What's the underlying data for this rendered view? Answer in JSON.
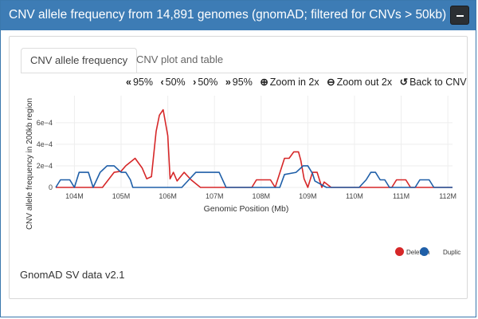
{
  "panel": {
    "title": "CNV allele frequency from 14,891 genomes (gnomAD; filtered for CNVs > 50kb)",
    "collapse_label": "−"
  },
  "tabs": [
    {
      "label": "CNV allele frequency",
      "active": true
    },
    {
      "label": "CNV plot and table",
      "active": false
    }
  ],
  "toolbar": [
    {
      "icon": "double-chevron-left-icon",
      "glyph": "«",
      "label": "95%"
    },
    {
      "icon": "chevron-left-icon",
      "glyph": "‹",
      "label": "50%"
    },
    {
      "icon": "chevron-right-icon",
      "glyph": "›",
      "label": "50%"
    },
    {
      "icon": "double-chevron-right-icon",
      "glyph": "»",
      "label": "95%"
    },
    {
      "icon": "zoom-in-icon",
      "glyph": "⊕",
      "label": "Zoom in 2x"
    },
    {
      "icon": "zoom-out-icon",
      "glyph": "⊖",
      "label": "Zoom out 2x"
    },
    {
      "icon": "undo-icon",
      "glyph": "↺",
      "label": "Back to CNV"
    }
  ],
  "footer": {
    "source": "GnomAD SV data v2.1"
  },
  "colors": {
    "deletion": "#d62728",
    "duplication": "#1f5fa8",
    "header": "#3d7cb5"
  },
  "chart_data": {
    "type": "line",
    "title": "",
    "xlabel": "Genomic Position (Mb)",
    "ylabel": "CNV allele frequency in 200kb region",
    "xlim": [
      103.6,
      112.1
    ],
    "ylim": [
      0,
      0.00085
    ],
    "x_ticks": [
      "104M",
      "105M",
      "106M",
      "107M",
      "108M",
      "109M",
      "110M",
      "111M",
      "112M"
    ],
    "x_tick_values": [
      104,
      105,
      106,
      107,
      108,
      109,
      110,
      111,
      112
    ],
    "y_ticks": [
      "0",
      "2e−4",
      "4e−4",
      "6e−4"
    ],
    "y_tick_values": [
      0,
      0.0002,
      0.0004,
      0.0006
    ],
    "series": [
      {
        "name": "Deletion",
        "color": "#d62728",
        "x": [
          103.6,
          104.6,
          104.85,
          105.0,
          105.1,
          105.3,
          105.45,
          105.55,
          105.65,
          105.75,
          105.82,
          105.9,
          106.0,
          106.05,
          106.12,
          106.2,
          106.35,
          106.5,
          106.7,
          107.8,
          107.9,
          108.2,
          108.3,
          108.5,
          108.6,
          108.7,
          108.8,
          108.85,
          108.92,
          109.0,
          109.1,
          109.2,
          109.3,
          109.35,
          109.5,
          110.8,
          110.9,
          111.1,
          111.2,
          112.1
        ],
        "y": [
          0,
          0,
          0.00014,
          0.00015,
          0.0002,
          0.00027,
          0.00018,
          8e-05,
          0.0001,
          0.00052,
          0.00067,
          0.00072,
          0.00048,
          8e-05,
          0.00014,
          6e-05,
          0.00014,
          7e-05,
          0,
          0,
          7e-05,
          7e-05,
          0,
          0.00027,
          0.00027,
          0.00033,
          0.00033,
          0.00025,
          8e-05,
          0,
          0.00014,
          0.00014,
          0,
          5e-05,
          0,
          0,
          7e-05,
          7e-05,
          0,
          0
        ]
      },
      {
        "name": "Duplication",
        "color": "#1f5fa8",
        "x": [
          103.6,
          103.7,
          103.9,
          104.0,
          104.1,
          104.3,
          104.4,
          104.55,
          104.7,
          104.85,
          105.0,
          105.1,
          105.2,
          105.25,
          105.3,
          106.3,
          106.45,
          106.6,
          107.1,
          107.25,
          108.4,
          108.5,
          108.75,
          108.9,
          109.0,
          109.1,
          109.15,
          109.4,
          110.1,
          110.25,
          110.35,
          110.45,
          110.55,
          110.65,
          110.75,
          110.8,
          111.3,
          111.4,
          111.6,
          111.7,
          112.1
        ],
        "y": [
          0,
          7e-05,
          7e-05,
          0,
          0.00014,
          0.00014,
          0,
          0.00014,
          0.0002,
          0.0002,
          0.00014,
          0.00014,
          7e-05,
          0,
          0,
          0,
          7e-05,
          0.00014,
          0.00014,
          0,
          0,
          0.00012,
          0.00014,
          0.0002,
          0.0002,
          0.00013,
          6e-05,
          0,
          0,
          7e-05,
          0.00014,
          0.00014,
          7e-05,
          7e-05,
          0,
          0,
          0,
          7e-05,
          7e-05,
          0,
          0
        ]
      }
    ],
    "legend": {
      "position": "bottom-right",
      "entries": [
        "Deletion",
        "Duplic"
      ]
    }
  }
}
